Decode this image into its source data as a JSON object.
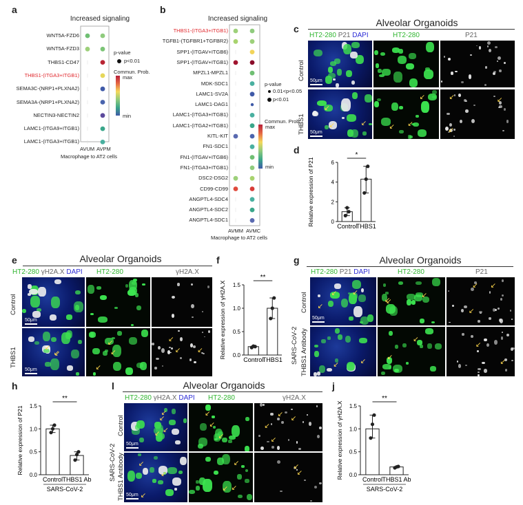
{
  "panels": {
    "a": {
      "letter": "a",
      "title": "Increased signaling",
      "rows": [
        "WNT5A-FZD6",
        "WNT5A-FZD3",
        "THBS1-CD47",
        "THBS1-(ITGA3+ITGB1)",
        "SEMA3C-(NRP1+PLXNA2)",
        "SEMA3A-(NRP1+PLXNA2)",
        "NECTIN3-NECTIN2",
        "LAMC1-(ITGA9+ITGB1)",
        "LAMC1-(ITGA3+ITGB1)"
      ],
      "highlight_row": "THBS1-(ITGA3+ITGB1)",
      "cols": [
        "AVUM",
        "AVPM"
      ],
      "xlabel": "Macrophage to AT2 cells",
      "legend_pvalue": "p-value",
      "legend_p1": "p<0.01",
      "legend_prob": "Commun. Prob.",
      "legend_max": "max",
      "legend_min": "min"
    },
    "b": {
      "letter": "b",
      "title": "Increased signaling",
      "rows": [
        "THBS1-(ITGA3+ITGB1)",
        "TGFB1-(TGFBR1+TGFBR2)",
        "SPP1-(ITGAV+ITGB6)",
        "SPP1-(ITGAV+ITGB1)",
        "MPZL1-MPZL1",
        "MDK-SDC1",
        "LAMC1-SV2A",
        "LAMC1-DAG1",
        "LAMC1-(ITGA3+ITGB1)",
        "LAMC1-(ITGA2+ITGB1)",
        "KITL-KIT",
        "FN1-SDC1",
        "FN1-(ITGAV+ITGB6)",
        "FN1-(ITGA3+ITGB1)",
        "DSC2-DSG2",
        "CD99-CD99",
        "ANGPTL4-SDC4",
        "ANGPTL4-SDC2",
        "ANGPTL4-SDC1"
      ],
      "highlight_row": "THBS1-(ITGA3+ITGB1)",
      "cols": [
        "AVMM",
        "AVMC"
      ],
      "xlabel": "Macrophage to AT2 cells",
      "legend_pvalue": "p-value",
      "legend_p1": "0.01<p<0.05",
      "legend_p2": "p<0.01",
      "legend_prob": "Commun. Prob.",
      "legend_max": "max",
      "legend_min": "min"
    },
    "c": {
      "letter": "c",
      "title": "Alveolar Organoids",
      "h_green": "HT2-280",
      "h_gray": "P21",
      "h_blue": "DAPI",
      "row1": "Control",
      "row2": "THBS1",
      "scale": "50μm"
    },
    "d": {
      "letter": "d",
      "ylabel": "Relative expression of P21",
      "sig": "*"
    },
    "e": {
      "letter": "e",
      "title": "Alveolar Organoids",
      "h_green": "HT2-280",
      "h_gray": "γH2A.X",
      "h_blue": "DAPI",
      "row1": "Control",
      "row2": "THBS1",
      "scale": "50μm"
    },
    "f": {
      "letter": "f",
      "ylabel": "Relative expression of γH2A.X",
      "sig": "**"
    },
    "g": {
      "letter": "g",
      "title": "Alveolar Organoids",
      "h_green": "HT2-280",
      "h_gray": "P21",
      "h_blue": "DAPI",
      "row1": "Control",
      "row2": "THBS1 Antibody",
      "side": "SARS-CoV-2",
      "scale": "50μm"
    },
    "h": {
      "letter": "h",
      "ylabel": "Relative expression of P21",
      "sig": "**",
      "group": "SARS-CoV-2"
    },
    "i": {
      "letter": "l",
      "title": "Alveolar Organoids",
      "h_green": "HT2-280",
      "h_gray": "γH2A.X",
      "h_blue": "DAPI",
      "row1": "Control",
      "row2": "THBS1 Antibody",
      "side": "SARS-CoV-2",
      "scale": "50μm"
    },
    "j": {
      "letter": "j",
      "ylabel": "Relative expression of γH2A.X",
      "sig": "**",
      "group": "SARS-CoV-2"
    }
  },
  "chart_data": [
    {
      "id": "d",
      "type": "bar",
      "categories": [
        "Control",
        "THBS1"
      ],
      "values": [
        1.0,
        4.3
      ],
      "points": [
        [
          0.6,
          1.4,
          1.0
        ],
        [
          2.9,
          4.3,
          5.6
        ]
      ],
      "ylabel": "Relative expression of P21",
      "ylim": [
        0,
        6
      ],
      "yticks": [
        0,
        2,
        4,
        6
      ]
    },
    {
      "id": "f",
      "type": "bar",
      "categories": [
        "Control",
        "THBS1"
      ],
      "values": [
        0.18,
        1.0
      ],
      "points": [
        [
          0.16,
          0.19,
          0.18
        ],
        [
          0.78,
          1.0,
          1.22
        ]
      ],
      "ylabel": "Relative expression of γH2A.X",
      "ylim": [
        0,
        1.5
      ],
      "yticks": [
        0,
        0.5,
        1.0,
        1.5
      ]
    },
    {
      "id": "h",
      "type": "bar",
      "categories": [
        "Control",
        "THBS1 Ab"
      ],
      "values": [
        1.0,
        0.42
      ],
      "points": [
        [
          0.92,
          1.0,
          1.08
        ],
        [
          0.32,
          0.44,
          0.5
        ]
      ],
      "ylabel": "Relative expression of P21",
      "ylim": [
        0,
        1.5
      ],
      "yticks": [
        0,
        0.5,
        1.0,
        1.5
      ]
    },
    {
      "id": "j",
      "type": "bar",
      "categories": [
        "Control",
        "THBS1 Ab"
      ],
      "values": [
        1.0,
        0.17
      ],
      "points": [
        [
          0.8,
          1.1,
          1.3
        ],
        [
          0.15,
          0.17,
          0.18
        ]
      ],
      "ylabel": "Relative expression of γH2A.X",
      "ylim": [
        0,
        1.5
      ],
      "yticks": [
        0,
        0.5,
        1.0,
        1.5
      ]
    }
  ],
  "dots_a": [
    {
      "row": 0,
      "col": 0,
      "c": "#6fbf73"
    },
    {
      "row": 0,
      "col": 1,
      "c": "#8fcb7d"
    },
    {
      "row": 1,
      "col": 0,
      "c": "#9dd07a"
    },
    {
      "row": 1,
      "col": 1,
      "c": "#7cc476"
    },
    {
      "row": 2,
      "col": 1,
      "c": "#b82534"
    },
    {
      "row": 3,
      "col": 1,
      "c": "#e6d75a"
    },
    {
      "row": 4,
      "col": 1,
      "c": "#3f5aa8"
    },
    {
      "row": 5,
      "col": 1,
      "c": "#4a64ad"
    },
    {
      "row": 6,
      "col": 1,
      "c": "#5c4a9c"
    },
    {
      "row": 7,
      "col": 1,
      "c": "#3aa68a"
    },
    {
      "row": 8,
      "col": 1,
      "c": "#49b0a0"
    }
  ],
  "dots_b": [
    {
      "row": 0,
      "col": 0,
      "c": "#9dd07a"
    },
    {
      "row": 0,
      "col": 1,
      "c": "#8fcb7d"
    },
    {
      "row": 1,
      "col": 0,
      "c": "#a8d36e"
    },
    {
      "row": 1,
      "col": 1,
      "c": "#9dd07a"
    },
    {
      "row": 2,
      "col": 1,
      "c": "#f2d45a"
    },
    {
      "row": 3,
      "col": 0,
      "c": "#a0142e"
    },
    {
      "row": 3,
      "col": 1,
      "c": "#8a0c2a"
    },
    {
      "row": 4,
      "col": 1,
      "c": "#6fbf73"
    },
    {
      "row": 5,
      "col": 1,
      "c": "#49b0a0"
    },
    {
      "row": 6,
      "col": 1,
      "c": "#3f5aa8"
    },
    {
      "row": 7,
      "col": 1,
      "c": "#3f5aa8",
      "small": true
    },
    {
      "row": 8,
      "col": 1,
      "c": "#49b0a0"
    },
    {
      "row": 9,
      "col": 1,
      "c": "#3aa68a"
    },
    {
      "row": 10,
      "col": 0,
      "c": "#5a6ab0"
    },
    {
      "row": 10,
      "col": 1,
      "c": "#4a64ad"
    },
    {
      "row": 11,
      "col": 1,
      "c": "#49b0a0"
    },
    {
      "row": 12,
      "col": 1,
      "c": "#6fbf73"
    },
    {
      "row": 13,
      "col": 1,
      "c": "#8fcb7d"
    },
    {
      "row": 14,
      "col": 0,
      "c": "#9dd07a"
    },
    {
      "row": 14,
      "col": 1,
      "c": "#a8d36e"
    },
    {
      "row": 15,
      "col": 0,
      "c": "#e04a3c"
    },
    {
      "row": 15,
      "col": 1,
      "c": "#d83c38"
    },
    {
      "row": 16,
      "col": 1,
      "c": "#49b0a0"
    },
    {
      "row": 17,
      "col": 1,
      "c": "#3aa68a"
    },
    {
      "row": 18,
      "col": 1,
      "c": "#5a6ab0"
    }
  ]
}
